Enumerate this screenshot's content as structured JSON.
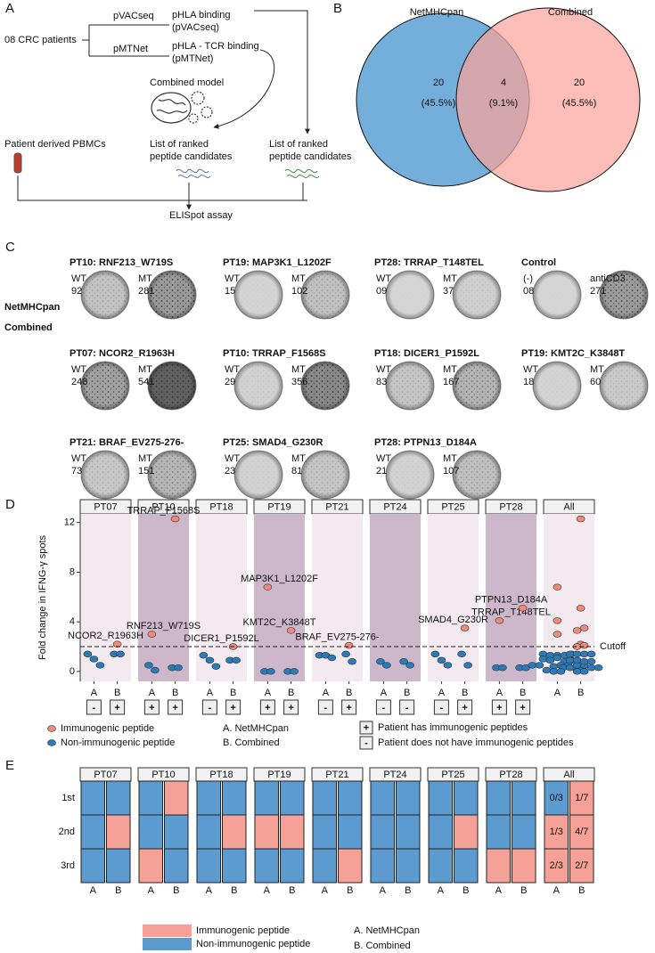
{
  "panel_a": {
    "label": "A",
    "cohort": "08 CRC patients",
    "tool_1": "pVACseq",
    "tool_2": "pMTNet",
    "output_1": [
      "pHLA binding",
      "(pVACseq)"
    ],
    "output_2": [
      "pHLA - TCR binding",
      "(pMTNet)"
    ],
    "model": "Combined model",
    "pbmc": "Patient derived PBMCs",
    "list_1": [
      "List of ranked",
      "peptide candidates"
    ],
    "list_2": [
      "List of ranked",
      "peptide candidates"
    ],
    "assay": "ELISpot assay"
  },
  "panel_c": {
    "label": "C",
    "rows": [
      {
        "method": "NetMHCpan",
        "items": [
          {
            "title": "PT10: RNF213_W719S",
            "wells": [
              {
                "name": "WT",
                "count": "92"
              },
              {
                "name": "MT",
                "count": "281"
              }
            ]
          },
          {
            "title": "PT19: MAP3K1_L1202F",
            "wells": [
              {
                "name": "WT",
                "count": "15"
              },
              {
                "name": "MT",
                "count": "102"
              }
            ]
          },
          {
            "title": "PT28: TRRAP_T148TEL",
            "wells": [
              {
                "name": "WT",
                "count": "09"
              },
              {
                "name": "MT",
                "count": "37"
              }
            ]
          },
          {
            "title": "Control",
            "wells": [
              {
                "name": "(-)",
                "count": "08"
              },
              {
                "name": "antiCD3",
                "count": "271"
              }
            ]
          }
        ]
      },
      {
        "method": "Combined",
        "items": [
          {
            "title": "PT07: NCOR2_R1963H",
            "wells": [
              {
                "name": "WT",
                "count": "248"
              },
              {
                "name": "MT",
                "count": "541"
              }
            ]
          },
          {
            "title": "PT10: TRRAP_F1568S",
            "wells": [
              {
                "name": "WT",
                "count": "29"
              },
              {
                "name": "MT",
                "count": "356"
              }
            ]
          },
          {
            "title": "PT18: DICER1_P1592L",
            "wells": [
              {
                "name": "WT",
                "count": "83"
              },
              {
                "name": "MT",
                "count": "167"
              }
            ]
          },
          {
            "title": "PT19: KMT2C_K3848T",
            "wells": [
              {
                "name": "WT",
                "count": "18"
              },
              {
                "name": "MT",
                "count": "60"
              }
            ]
          },
          {
            "title": "PT21: BRAF_EV275-276-",
            "wells": [
              {
                "name": "WT",
                "count": "73"
              },
              {
                "name": "MT",
                "count": "151"
              }
            ]
          },
          {
            "title": "PT25: SMAD4_G230R",
            "wells": [
              {
                "name": "WT",
                "count": "23"
              },
              {
                "name": "MT",
                "count": "81"
              }
            ]
          },
          {
            "title": "PT28: PTPN13_D184A",
            "wells": [
              {
                "name": "WT",
                "count": "21"
              },
              {
                "name": "MT",
                "count": "107"
              }
            ]
          }
        ]
      }
    ]
  },
  "chart_data": [
    {
      "type": "venn",
      "panel": "B",
      "series": [
        {
          "name": "NetMHCpan",
          "color": "#74aedb"
        },
        {
          "name": "Combined",
          "color": "#f9a49b"
        }
      ],
      "values": [
        20,
        4,
        20
      ],
      "percent_labels": [
        "(45.5%)",
        "(9.1%)",
        "(45.5%)"
      ]
    },
    {
      "type": "dot",
      "panel": "D",
      "y_label": "Fold change in IFNG-γ spots",
      "ylim": [
        -0.8,
        12.7
      ],
      "yticks": [
        0,
        4,
        8,
        12
      ],
      "categories": [
        "A",
        "B"
      ],
      "series": [
        {
          "name": "Immunogenic peptide",
          "color": "#f08a7a"
        },
        {
          "name": "Non-immunogenic peptide",
          "color": "#2b7bba"
        }
      ],
      "cutoff": {
        "value": 2,
        "label": "Cutoff"
      },
      "methods": [
        "A. NetMHCpan",
        "B. Combined"
      ],
      "status_legend": [
        {
          "symbol": "+",
          "label": "Patient has immunogenic peptides"
        },
        {
          "symbol": "-",
          "label": "Patient does not have immunogenic peptides"
        }
      ],
      "facets": [
        {
          "name": "PT07",
          "status": [
            "-",
            "+"
          ],
          "immunogenic": [
            null,
            2.2
          ],
          "immunogenic_labels": [
            null,
            "NCOR2_R1963H"
          ],
          "non_immunogenic": [
            [
              1.4,
              1.0,
              0.5
            ],
            [
              1.4,
              1.4
            ]
          ]
        },
        {
          "name": "PT10",
          "status": [
            "+",
            "+"
          ],
          "immunogenic": [
            3.0,
            12.3
          ],
          "immunogenic_labels": [
            "RNF213_W719S",
            "TRRAP_F1568S"
          ],
          "non_immunogenic": [
            [
              0.5,
              0.1
            ],
            [
              0.3,
              0.3
            ]
          ]
        },
        {
          "name": "PT18",
          "status": [
            "-",
            "+"
          ],
          "immunogenic": [
            null,
            2.0
          ],
          "immunogenic_labels": [
            null,
            "DICER1_P1592L"
          ],
          "non_immunogenic": [
            [
              1.3,
              0.9,
              0.4
            ],
            [
              0.9,
              0.9
            ]
          ]
        },
        {
          "name": "PT19",
          "status": [
            "+",
            "+"
          ],
          "immunogenic": [
            6.8,
            3.3
          ],
          "immunogenic_labels": [
            "MAP3K1_L1202F",
            "KMT2C_K3848T"
          ],
          "non_immunogenic": [
            [
              0.0,
              0.0
            ],
            [
              0.0,
              0.0
            ]
          ]
        },
        {
          "name": "PT21",
          "status": [
            "-",
            "+"
          ],
          "immunogenic": [
            null,
            2.1
          ],
          "immunogenic_labels": [
            null,
            "BRAF_EV275-276-"
          ],
          "non_immunogenic": [
            [
              1.3,
              1.3,
              1.1
            ],
            [
              1.4,
              0.8
            ]
          ]
        },
        {
          "name": "PT24",
          "status": [
            "-",
            "-"
          ],
          "immunogenic": [
            null,
            null
          ],
          "immunogenic_labels": [
            null,
            null
          ],
          "non_immunogenic": [
            [
              0.8,
              0.5
            ],
            [
              0.8,
              0.5
            ]
          ]
        },
        {
          "name": "PT25",
          "status": [
            "-",
            "+"
          ],
          "immunogenic": [
            null,
            3.5
          ],
          "immunogenic_labels": [
            null,
            "SMAD4_G230R"
          ],
          "non_immunogenic": [
            [
              1.4,
              0.9,
              0.5
            ],
            [
              1.4,
              0.5
            ]
          ]
        },
        {
          "name": "PT28",
          "status": [
            "+",
            "+"
          ],
          "immunogenic": [
            4.1,
            5.1
          ],
          "immunogenic_labels": [
            "TRRAP_T148TEL",
            "PTPN13_D184A"
          ],
          "non_immunogenic": [
            [
              0.3,
              0.3
            ],
            [
              0.3,
              0.3
            ]
          ]
        }
      ],
      "pooled_facet": "All"
    },
    {
      "type": "tile",
      "panel": "E",
      "rows": [
        "1st",
        "2nd",
        "3rd"
      ],
      "categories": [
        "A",
        "B"
      ],
      "series": [
        {
          "name": "Immunogenic peptide",
          "color": "#f6a197"
        },
        {
          "name": "Non-immunogenic peptide",
          "color": "#5b9bd0"
        }
      ],
      "methods": [
        "A. NetMHCpan",
        "B. Combined"
      ],
      "facets": [
        {
          "name": "PT07",
          "immunogenic": [
            [
              0,
              0,
              0
            ],
            [
              0,
              1,
              0
            ]
          ]
        },
        {
          "name": "PT10",
          "immunogenic": [
            [
              0,
              0,
              1
            ],
            [
              1,
              0,
              0
            ]
          ]
        },
        {
          "name": "PT18",
          "immunogenic": [
            [
              0,
              0,
              0
            ],
            [
              0,
              1,
              0
            ]
          ]
        },
        {
          "name": "PT19",
          "immunogenic": [
            [
              0,
              1,
              0
            ],
            [
              0,
              1,
              0
            ]
          ]
        },
        {
          "name": "PT21",
          "immunogenic": [
            [
              0,
              0,
              0
            ],
            [
              0,
              0,
              1
            ]
          ]
        },
        {
          "name": "PT24",
          "immunogenic": [
            [
              0,
              0,
              0
            ],
            [
              0,
              0,
              0
            ]
          ]
        },
        {
          "name": "PT25",
          "immunogenic": [
            [
              0,
              0,
              0
            ],
            [
              0,
              1,
              0
            ]
          ]
        },
        {
          "name": "PT28",
          "immunogenic": [
            [
              0,
              0,
              1
            ],
            [
              0,
              0,
              1
            ]
          ]
        },
        {
          "name": "All",
          "immunogenic": [
            [
              0,
              1,
              1
            ],
            [
              1,
              1,
              1
            ]
          ],
          "cell_labels": [
            [
              "0/3",
              "1/3",
              "2/3"
            ],
            [
              "1/7",
              "4/7",
              "2/7"
            ]
          ]
        }
      ]
    }
  ]
}
